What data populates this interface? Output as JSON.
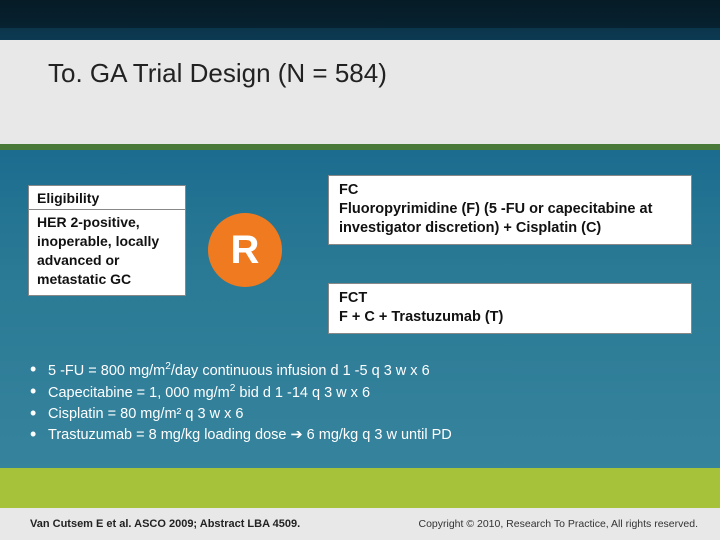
{
  "title": "To. GA Trial Design (N = 584)",
  "eligibility": {
    "header": "Eligibility",
    "body": "HER 2-positive, inoperable, locally advanced or metastatic GC"
  },
  "randomize_label": "R",
  "arms": {
    "arm1": "FC\nFluoropyrimidine (F) (5 -FU or capecitabine at investigator discretion) + Cisplatin (C)",
    "arm2": "FCT\nF + C + Trastuzumab (T)"
  },
  "dosing": {
    "d1_pre": "5 -FU = 800 mg/m",
    "d1_post": "/day continuous infusion d 1 -5 q 3 w x 6",
    "d2_pre": "Capecitabine = 1, 000 mg/m",
    "d2_post": " bid d 1 -14 q 3 w x 6",
    "d3": "Cisplatin = 80 mg/m² q 3 w x 6",
    "d4_pre": "Trastuzumab = 8 mg/kg loading dose ",
    "d4_post": " 6 mg/kg q 3 w until PD"
  },
  "sup2": "2",
  "arrow": "➔",
  "citation": "Van Cutsem E et al. ASCO 2009; Abstract LBA 4509.",
  "copyright": "Copyright © 2010, Research To Practice, All rights reserved.",
  "colors": {
    "accent_green": "#a6c23a",
    "accent_orange": "#f07a1f",
    "rule_green": "#4a7a3a"
  }
}
